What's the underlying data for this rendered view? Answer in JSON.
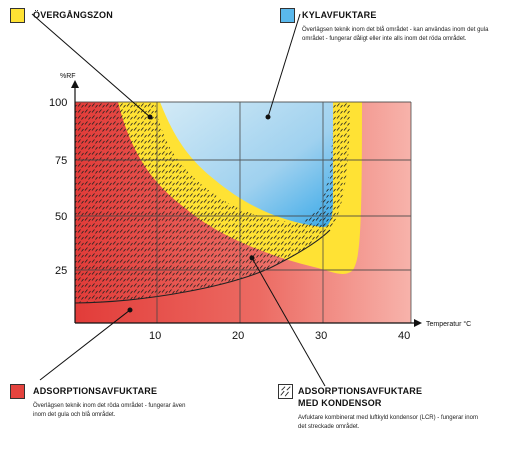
{
  "legend": {
    "transition": {
      "title": "ÖVERGÅNGSZON",
      "color": "#ffe234"
    },
    "cooling": {
      "title": "KYLAVFUKTARE",
      "desc": "Överlägsen teknik inom det blå området - kan användas inom det gula området - fungerar dåligt eller inte alls inom det röda området.",
      "color": "#5ab8ec"
    },
    "adsorption": {
      "title": "ADSORPTIONSAVFUKTARE",
      "desc": "Överlägsen teknik inom det röda området - fungerar även inom det gula och blå området.",
      "color": "#e4433e"
    },
    "adsorption_condenser": {
      "title_line1": "ADSORPTIONSAVFUKTARE",
      "title_line2": "MED KONDENSOR",
      "desc": "Avfuktare kombinerat med luftkyld kondensor (LCR) - fungerar inom det streckade området.",
      "icon": "hatched-swatch-icon"
    }
  },
  "axes": {
    "y_unit": "%RF",
    "x_unit": "Temperatur °C",
    "y_ticks": [
      "100",
      "75",
      "50",
      "25"
    ],
    "x_ticks": [
      "10",
      "20",
      "30",
      "40"
    ]
  }
}
